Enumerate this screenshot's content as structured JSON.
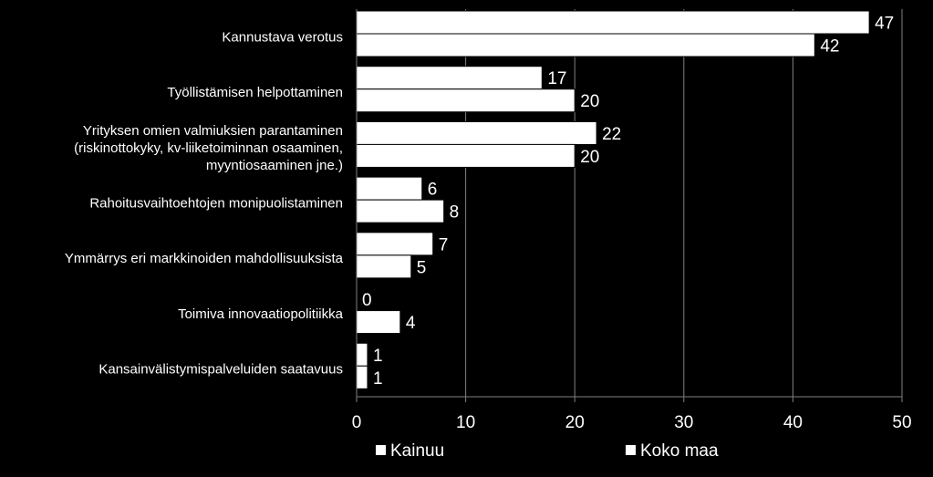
{
  "chart_data": {
    "type": "bar",
    "orientation": "horizontal",
    "categories": [
      [
        "Kannustava verotus"
      ],
      [
        "Työllistämisen helpottaminen"
      ],
      [
        "Yrityksen omien valmiuksien parantaminen",
        "(riskinottokyky, kv-liiketoiminnan osaaminen,",
        "myyntiosaaminen jne.)"
      ],
      [
        "Rahoitusvaihtoehtojen monipuolistaminen"
      ],
      [
        "Ymmärrys eri markkinoiden mahdollisuuksista"
      ],
      [
        "Toimiva innovaatiopolitiikka"
      ],
      [
        "Kansainvälistymispalveluiden saatavuus"
      ]
    ],
    "series": [
      {
        "name": "Kainuu",
        "values": [
          47,
          17,
          22,
          6,
          7,
          0,
          1
        ]
      },
      {
        "name": "Koko maa",
        "values": [
          42,
          20,
          20,
          8,
          5,
          4,
          1
        ]
      }
    ],
    "xlim": [
      0,
      50
    ],
    "xticks": [
      0,
      10,
      20,
      30,
      40,
      50
    ],
    "grid": true,
    "legend": "bottom",
    "colors": {
      "background": "#000000",
      "bar": "#ffffff",
      "bar_outline": "#000000",
      "grid": "#808080",
      "text": "#ffffff"
    }
  }
}
